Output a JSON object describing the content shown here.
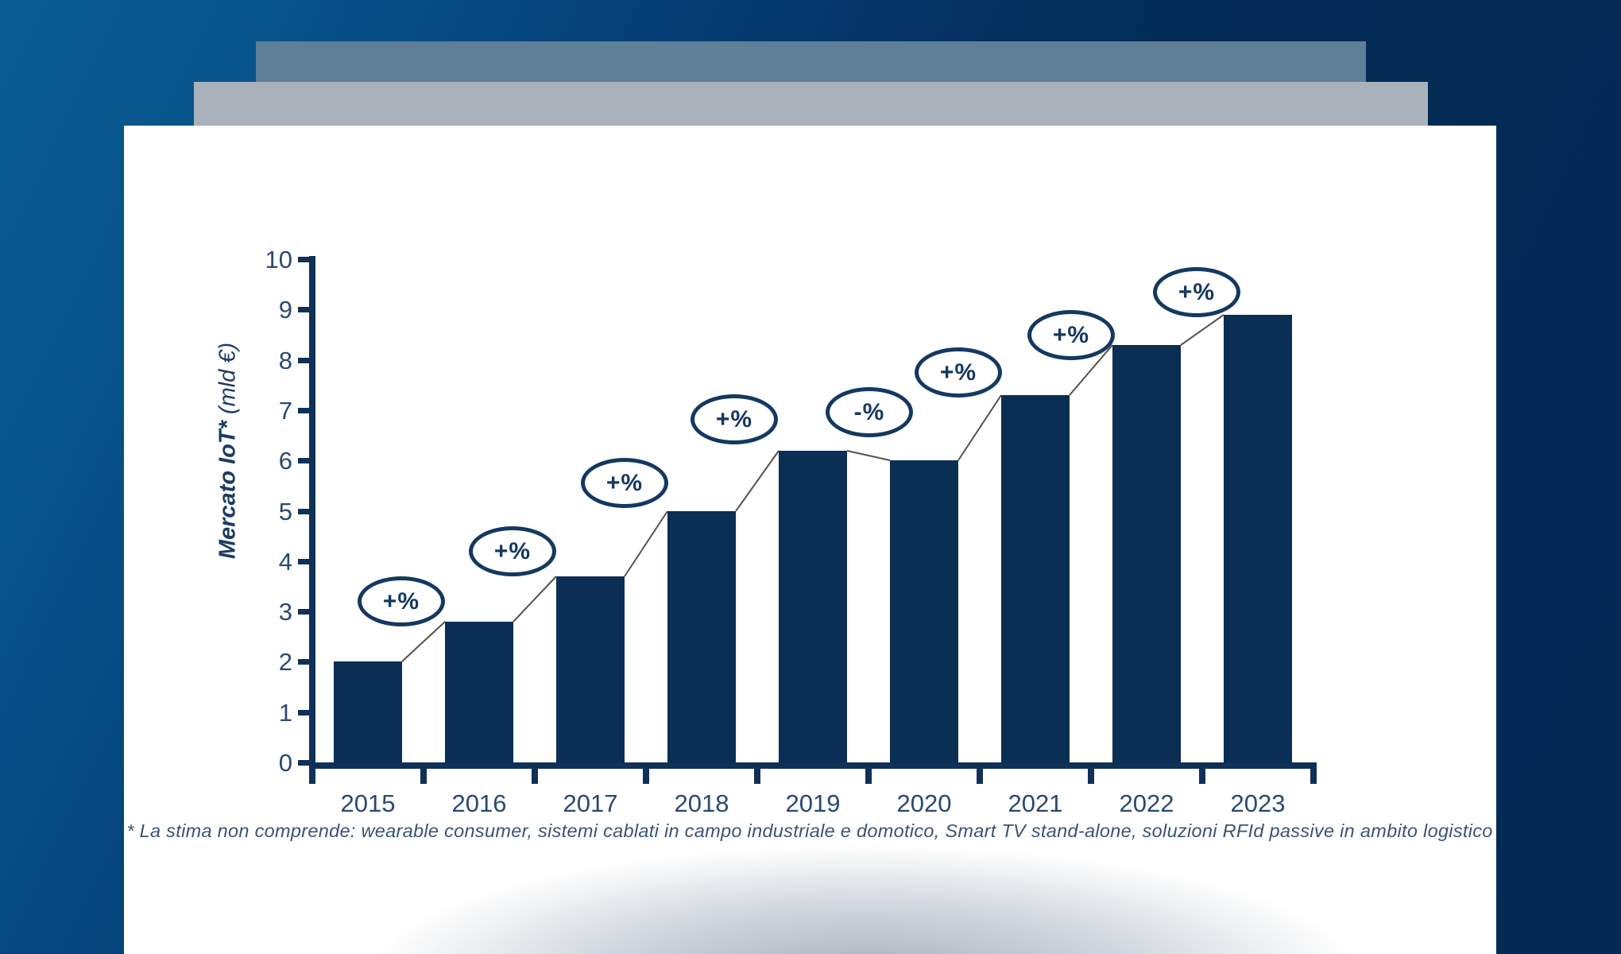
{
  "card": {
    "footnote": "* La stima non comprende: wearable consumer, sistemi cablati in campo industriale e domotico, Smart TV stand-alone, soluzioni RFId passive in ambito logistico"
  },
  "chart_data": {
    "type": "bar",
    "title": "Mercato IoT* (mld €)",
    "ylabel_main": "Mercato IoT*",
    "ylabel_unit": " (mld €)",
    "xlabel": "",
    "categories": [
      "2015",
      "2016",
      "2017",
      "2018",
      "2019",
      "2020",
      "2021",
      "2022",
      "2023"
    ],
    "values": [
      2.0,
      2.8,
      3.7,
      5.0,
      6.2,
      6.0,
      7.3,
      8.3,
      8.9
    ],
    "unit": "mld €",
    "ylim": [
      0,
      10
    ],
    "ytick_step": 1,
    "grid": false,
    "legend": false,
    "bar_color": "#0b2e54",
    "axis_color": "#0f3158",
    "badge_color": "#143861",
    "connector_color": "#55524a",
    "growth_badges": [
      {
        "between": "2015-2016",
        "label": "+%"
      },
      {
        "between": "2016-2017",
        "label": "+%"
      },
      {
        "between": "2017-2018",
        "label": "+%"
      },
      {
        "between": "2018-2019",
        "label": "+%"
      },
      {
        "between": "2019-2020",
        "label": "-%"
      },
      {
        "between": "2020-2021",
        "label": "+%"
      },
      {
        "between": "2021-2022",
        "label": "+%"
      },
      {
        "between": "2022-2023",
        "label": "+%"
      }
    ]
  }
}
